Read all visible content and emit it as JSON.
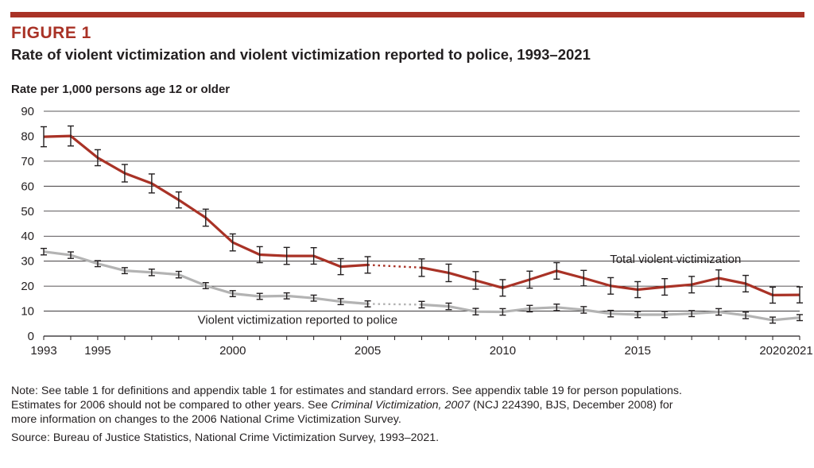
{
  "figure_label": "FIGURE 1",
  "figure_title": "Rate of violent victimization and violent victimization reported to police, 1993–2021",
  "colors": {
    "accent": "#a93226",
    "series_total": "#a93226",
    "series_reported": "#b3b3b3",
    "grid": "#231f20"
  },
  "notes": {
    "line1": "Note: See table 1 for definitions and appendix table 1 for estimates and standard errors. See appendix table 19 for person populations.",
    "line2_a": "Estimates for 2006 should not be compared to other years. See ",
    "line2_italic": "Criminal Victimization, 2007",
    "line2_b": " (NCJ 224390, BJS, December 2008) for",
    "line3": "more information on changes to the 2006 National Crime Victimization Survey.",
    "source": "Source: Bureau of Justice Statistics, National Crime Victimization Survey, 1993–2021."
  },
  "chart_data": {
    "type": "line",
    "title": "Rate of violent victimization and violent victimization reported to police, 1993–2021",
    "ylabel": "Rate per 1,000 persons age 12 or older",
    "xlabel": "",
    "ylim": [
      0,
      90
    ],
    "xlim": [
      1993,
      2021
    ],
    "y_ticks": [
      0,
      10,
      20,
      30,
      40,
      50,
      60,
      70,
      80,
      90
    ],
    "x_tick_labels": [
      1993,
      1995,
      2000,
      2005,
      2010,
      2015,
      2020,
      2021
    ],
    "gridlines": "horizontal",
    "note": "2006 not plotted; dotted line connects 2005 to 2007",
    "series": [
      {
        "name": "Total violent victimization",
        "x": [
          1993,
          1994,
          1995,
          1996,
          1997,
          1998,
          1999,
          2000,
          2001,
          2002,
          2003,
          2004,
          2005,
          2007,
          2008,
          2009,
          2010,
          2011,
          2012,
          2013,
          2014,
          2015,
          2016,
          2017,
          2018,
          2019,
          2020,
          2021
        ],
        "y": [
          79.8,
          80.1,
          71.4,
          65.2,
          61.1,
          54.5,
          47.4,
          37.5,
          32.6,
          32.1,
          32.1,
          27.8,
          28.5,
          27.4,
          25.3,
          22.3,
          19.3,
          22.6,
          26.1,
          23.2,
          20.1,
          18.6,
          19.7,
          20.6,
          23.2,
          21.0,
          16.4,
          16.5
        ],
        "error": [
          4.0,
          4.0,
          3.2,
          3.5,
          3.8,
          3.2,
          3.4,
          3.4,
          3.2,
          3.4,
          3.3,
          3.2,
          3.3,
          3.5,
          3.5,
          3.5,
          3.3,
          3.4,
          3.3,
          3.1,
          3.3,
          3.2,
          3.3,
          3.3,
          3.3,
          3.3,
          3.2,
          3.2
        ]
      },
      {
        "name": "Violent victimization reported to police",
        "x": [
          1993,
          1994,
          1995,
          1996,
          1997,
          1998,
          1999,
          2000,
          2001,
          2002,
          2003,
          2004,
          2005,
          2007,
          2008,
          2009,
          2010,
          2011,
          2012,
          2013,
          2014,
          2015,
          2016,
          2017,
          2018,
          2019,
          2020,
          2021
        ],
        "y": [
          33.8,
          32.4,
          29.0,
          26.2,
          25.5,
          24.6,
          20.2,
          17.0,
          15.9,
          16.1,
          15.2,
          13.8,
          12.9,
          12.6,
          11.9,
          9.8,
          9.7,
          11.0,
          11.5,
          10.5,
          9.0,
          8.6,
          8.6,
          9.0,
          9.7,
          8.3,
          6.4,
          7.4
        ],
        "error": [
          1.3,
          1.3,
          1.2,
          1.2,
          1.3,
          1.3,
          1.2,
          1.2,
          1.2,
          1.2,
          1.2,
          1.2,
          1.2,
          1.3,
          1.3,
          1.3,
          1.3,
          1.3,
          1.3,
          1.3,
          1.3,
          1.2,
          1.2,
          1.2,
          1.3,
          1.3,
          1.2,
          1.2
        ]
      }
    ],
    "series_labels": [
      "Total violent victimization",
      "Violent victimization reported to police"
    ]
  }
}
